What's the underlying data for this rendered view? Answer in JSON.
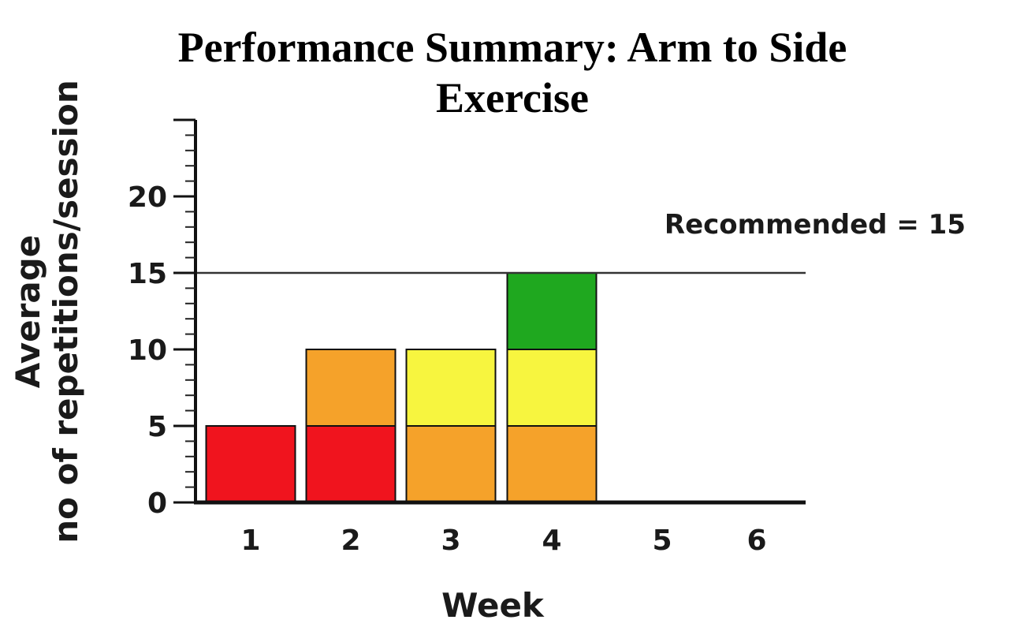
{
  "chart_data": {
    "type": "bar",
    "title_lines": [
      "Performance Summary: Arm to Side",
      "Exercise"
    ],
    "xlabel": "Week",
    "ylabel_lines": [
      "Average",
      "no of repetitions/session"
    ],
    "categories": [
      "1",
      "2",
      "3",
      "4",
      "5",
      "6"
    ],
    "ylim": [
      0,
      25
    ],
    "yticks": [
      0,
      5,
      10,
      15,
      20
    ],
    "stacked": true,
    "bars": [
      {
        "week": "1",
        "segments": [
          {
            "from": 0,
            "to": 5,
            "color": "#f0141e"
          }
        ]
      },
      {
        "week": "2",
        "segments": [
          {
            "from": 0,
            "to": 5,
            "color": "#f0141e"
          },
          {
            "from": 5,
            "to": 10,
            "color": "#f5a22a"
          }
        ]
      },
      {
        "week": "3",
        "segments": [
          {
            "from": 0,
            "to": 5,
            "color": "#f5a22a"
          },
          {
            "from": 5,
            "to": 10,
            "color": "#f7f53f"
          }
        ]
      },
      {
        "week": "4",
        "segments": [
          {
            "from": 0,
            "to": 5,
            "color": "#f5a22a"
          },
          {
            "from": 5,
            "to": 10,
            "color": "#f7f53f"
          },
          {
            "from": 10,
            "to": 15,
            "color": "#1fa81f"
          }
        ]
      },
      {
        "week": "5",
        "segments": []
      },
      {
        "week": "6",
        "segments": []
      }
    ],
    "reference_line": {
      "value": 15,
      "label": "Recommended = 15"
    },
    "grid": false
  }
}
